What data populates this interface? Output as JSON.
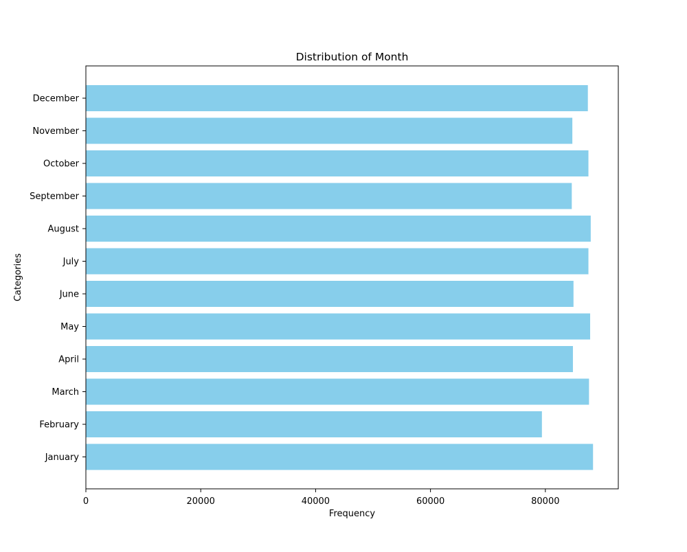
{
  "chart_data": {
    "type": "bar",
    "orientation": "horizontal",
    "title": "Distribution of Month",
    "xlabel": "Frequency",
    "ylabel": "Categories",
    "categories": [
      "January",
      "February",
      "March",
      "April",
      "May",
      "June",
      "July",
      "August",
      "September",
      "October",
      "November",
      "December"
    ],
    "values": [
      88300,
      79400,
      87600,
      84800,
      87800,
      84900,
      87500,
      87900,
      84600,
      87500,
      84700,
      87400
    ],
    "xlim": [
      0,
      92700
    ],
    "xticks": [
      0,
      20000,
      40000,
      60000,
      80000
    ],
    "grid": false,
    "bar_color": "#87CEEB"
  }
}
